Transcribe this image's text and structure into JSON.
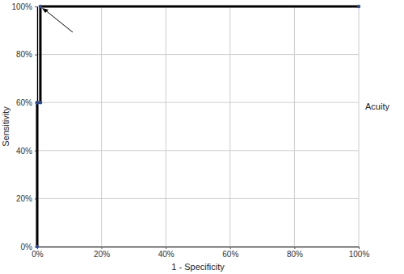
{
  "chart_data": {
    "type": "line",
    "xlabel": "1 - Specificity",
    "ylabel": "Sensitivity",
    "x": [
      0,
      0,
      1,
      1,
      100
    ],
    "series": [
      {
        "name": "Acuity",
        "color": "#000000",
        "marker": "circle",
        "values": [
          0,
          60,
          60,
          100,
          100
        ]
      }
    ],
    "xlim": [
      0,
      100
    ],
    "ylim": [
      0,
      100
    ],
    "xticks": [
      {
        "value": 0,
        "label": "0%"
      },
      {
        "value": 20,
        "label": "20%"
      },
      {
        "value": 40,
        "label": "40%"
      },
      {
        "value": 60,
        "label": "60%"
      },
      {
        "value": 80,
        "label": "80%"
      },
      {
        "value": 100,
        "label": "100%"
      }
    ],
    "yticks": [
      {
        "value": 0,
        "label": "0%"
      },
      {
        "value": 20,
        "label": "20%"
      },
      {
        "value": 40,
        "label": "40%"
      },
      {
        "value": 60,
        "label": "60%"
      },
      {
        "value": 80,
        "label": "80%"
      },
      {
        "value": 100,
        "label": "100%"
      }
    ],
    "grid": true,
    "legend": "right"
  }
}
